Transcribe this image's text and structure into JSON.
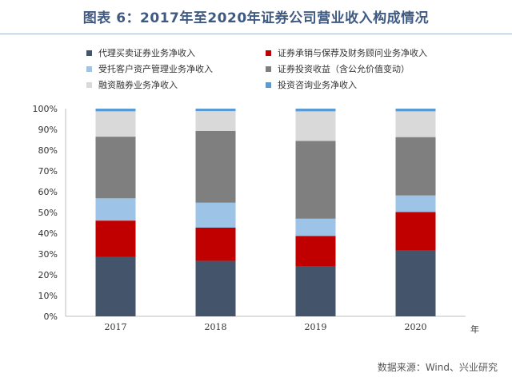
{
  "title": "图表 6：2017年至2020年证券公司营业收入构成情况",
  "source": "数据来源：Wind、兴业研究",
  "chart_data": {
    "type": "bar",
    "stacked": true,
    "categories": [
      "2017",
      "2018",
      "2019",
      "2020"
    ],
    "xlabel": "年",
    "ylabel": "",
    "ylim": [
      0,
      100
    ],
    "ytick_labels": [
      "0%",
      "10%",
      "20%",
      "30%",
      "40%",
      "50%",
      "60%",
      "70%",
      "80%",
      "90%",
      "100%"
    ],
    "grid": false,
    "legend": "top",
    "series": [
      {
        "name": "代理买卖证券业务净收入",
        "color": "#44546a",
        "values": [
          28.5,
          26.7,
          24.0,
          31.7
        ]
      },
      {
        "name": "证券承销与保荐及财务顾问业务净收入",
        "color": "#c00000",
        "values": [
          17.6,
          16.0,
          14.7,
          18.5
        ]
      },
      {
        "name": "受托客户资产管理业务净收入",
        "color": "#9dc3e6",
        "values": [
          10.7,
          12.0,
          8.3,
          8.0
        ]
      },
      {
        "name": "证券投资收益（含公允价值变动）",
        "color": "#7f7f7f",
        "values": [
          29.7,
          34.6,
          37.5,
          28.1
        ]
      },
      {
        "name": "融资融券业务净收入",
        "color": "#d9d9d9",
        "values": [
          12.2,
          9.5,
          14.2,
          12.4
        ]
      },
      {
        "name": "投资咨询业务净收入",
        "color": "#5b9bd5",
        "values": [
          1.3,
          1.2,
          1.3,
          1.3
        ]
      }
    ]
  }
}
